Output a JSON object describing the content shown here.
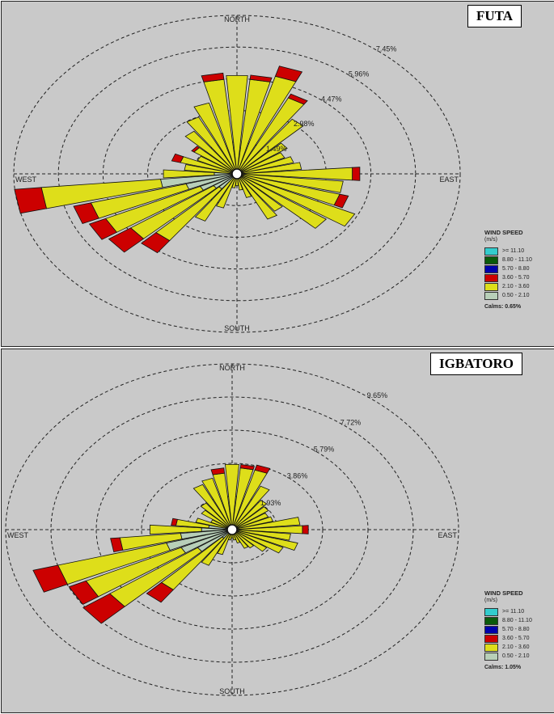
{
  "chart_data": [
    {
      "type": "wind-rose",
      "station": "FUTA",
      "compass": {
        "north": "NORTH",
        "south": "SOUTH",
        "east": "EAST",
        "west": "WEST"
      },
      "ring_labels": [
        "1.49%",
        "2.98%",
        "4.47%",
        "5.96%",
        "7.45%"
      ],
      "ring_values": [
        1.49,
        2.98,
        4.47,
        5.96,
        7.45
      ],
      "legend": {
        "title": "WIND SPEED",
        "unit": "(m/s)",
        "classes": [
          {
            "label": ">= 11.10",
            "color": "#33cccc"
          },
          {
            "label": "8.80 - 11.10",
            "color": "#0a5a0a"
          },
          {
            "label": "5.70 - 8.80",
            "color": "#0000aa"
          },
          {
            "label": "3.60 - 5.70",
            "color": "#cc0000"
          },
          {
            "label": "2.10 - 3.60",
            "color": "#dede1a"
          },
          {
            "label": "0.50 - 2.10",
            "color": "#b8cfb8"
          }
        ],
        "calms": "Calms: 0.65%"
      },
      "sectors": [
        {
          "dir": 0,
          "bands": [
            0.0,
            4.47,
            0.0
          ]
        },
        {
          "dir": 10,
          "bands": [
            0.0,
            4.3,
            0.2
          ]
        },
        {
          "dir": 20,
          "bands": [
            0.0,
            4.6,
            0.5
          ]
        },
        {
          "dir": 30,
          "bands": [
            0.0,
            3.8,
            0.2
          ]
        },
        {
          "dir": 40,
          "bands": [
            0.0,
            3.0,
            0.0
          ]
        },
        {
          "dir": 50,
          "bands": [
            0.0,
            1.9,
            0.0
          ]
        },
        {
          "dir": 60,
          "bands": [
            0.0,
            1.6,
            0.0
          ]
        },
        {
          "dir": 70,
          "bands": [
            0.0,
            1.8,
            0.0
          ]
        },
        {
          "dir": 80,
          "bands": [
            0.0,
            2.0,
            0.0
          ]
        },
        {
          "dir": 90,
          "bands": [
            0.0,
            3.7,
            0.25
          ]
        },
        {
          "dir": 100,
          "bands": [
            0.0,
            3.4,
            0.0
          ]
        },
        {
          "dir": 110,
          "bands": [
            0.0,
            3.4,
            0.3
          ]
        },
        {
          "dir": 120,
          "bands": [
            0.0,
            4.2,
            0.0
          ]
        },
        {
          "dir": 130,
          "bands": [
            0.0,
            3.5,
            0.0
          ]
        },
        {
          "dir": 140,
          "bands": [
            0.0,
            2.0,
            0.0
          ]
        },
        {
          "dir": 150,
          "bands": [
            0.0,
            2.2,
            0.0
          ]
        },
        {
          "dir": 160,
          "bands": [
            0.0,
            1.0,
            0.0
          ]
        },
        {
          "dir": 170,
          "bands": [
            0.0,
            0.6,
            0.0
          ]
        },
        {
          "dir": 180,
          "bands": [
            0.0,
            0.4,
            0.0
          ]
        },
        {
          "dir": 190,
          "bands": [
            0.0,
            0.5,
            0.0
          ]
        },
        {
          "dir": 200,
          "bands": [
            0.0,
            1.5,
            0.0
          ]
        },
        {
          "dir": 210,
          "bands": [
            0.0,
            2.3,
            0.0
          ]
        },
        {
          "dir": 220,
          "bands": [
            0.7,
            3.0,
            0.7
          ]
        },
        {
          "dir": 230,
          "bands": [
            0.8,
            3.4,
            0.9
          ]
        },
        {
          "dir": 240,
          "bands": [
            1.2,
            3.5,
            0.6
          ]
        },
        {
          "dir": 250,
          "bands": [
            1.6,
            3.3,
            0.6
          ]
        },
        {
          "dir": 260,
          "bands": [
            2.4,
            4.0,
            0.9
          ]
        },
        {
          "dir": 270,
          "bands": [
            0.6,
            1.7,
            0.0
          ]
        },
        {
          "dir": 280,
          "bands": [
            0.0,
            1.6,
            0.0
          ]
        },
        {
          "dir": 290,
          "bands": [
            0.0,
            1.8,
            0.3
          ]
        },
        {
          "dir": 300,
          "bands": [
            0.0,
            1.3,
            0.0
          ]
        },
        {
          "dir": 310,
          "bands": [
            0.0,
            1.6,
            0.1
          ]
        },
        {
          "dir": 320,
          "bands": [
            0.0,
            2.3,
            0.0
          ]
        },
        {
          "dir": 330,
          "bands": [
            0.0,
            2.8,
            0.0
          ]
        },
        {
          "dir": 340,
          "bands": [
            0.0,
            3.3,
            0.0
          ]
        },
        {
          "dir": 350,
          "bands": [
            0.0,
            4.3,
            0.3
          ]
        }
      ]
    },
    {
      "type": "wind-rose",
      "station": "IGBATORO",
      "compass": {
        "north": "NORTH",
        "south": "SOUTH",
        "east": "EAST",
        "west": "WEST"
      },
      "ring_labels": [
        "1.93%",
        "3.86%",
        "5.79%",
        "7.72%",
        "9.65%"
      ],
      "ring_values": [
        1.93,
        3.86,
        5.79,
        7.72,
        9.65
      ],
      "legend": {
        "title": "WIND SPEED",
        "unit": "(m/s)",
        "classes": [
          {
            "label": ">= 11.10",
            "color": "#33cccc"
          },
          {
            "label": "8.80 - 11.10",
            "color": "#0a5a0a"
          },
          {
            "label": "5.70 - 8.80",
            "color": "#0000aa"
          },
          {
            "label": "3.60 - 5.70",
            "color": "#cc0000"
          },
          {
            "label": "2.10 - 3.60",
            "color": "#dede1a"
          },
          {
            "label": "0.50 - 2.10",
            "color": "#b8cfb8"
          }
        ],
        "calms": "Calms: 1.05%"
      },
      "sectors": [
        {
          "dir": 0,
          "bands": [
            0.0,
            3.6,
            0.0
          ]
        },
        {
          "dir": 10,
          "bands": [
            0.0,
            3.4,
            0.2
          ]
        },
        {
          "dir": 20,
          "bands": [
            0.0,
            3.4,
            0.3
          ]
        },
        {
          "dir": 30,
          "bands": [
            0.0,
            2.6,
            0.0
          ]
        },
        {
          "dir": 40,
          "bands": [
            0.0,
            1.9,
            0.0
          ]
        },
        {
          "dir": 50,
          "bands": [
            0.0,
            1.7,
            0.0
          ]
        },
        {
          "dir": 60,
          "bands": [
            0.0,
            1.5,
            0.0
          ]
        },
        {
          "dir": 70,
          "bands": [
            0.0,
            1.6,
            0.0
          ]
        },
        {
          "dir": 80,
          "bands": [
            0.0,
            2.7,
            0.0
          ]
        },
        {
          "dir": 90,
          "bands": [
            0.0,
            2.8,
            0.25
          ]
        },
        {
          "dir": 100,
          "bands": [
            0.0,
            2.3,
            0.0
          ]
        },
        {
          "dir": 110,
          "bands": [
            0.0,
            2.7,
            0.0
          ]
        },
        {
          "dir": 120,
          "bands": [
            0.0,
            2.2,
            0.0
          ]
        },
        {
          "dir": 130,
          "bands": [
            0.0,
            1.6,
            0.0
          ]
        },
        {
          "dir": 140,
          "bands": [
            0.0,
            1.1,
            0.0
          ]
        },
        {
          "dir": 150,
          "bands": [
            0.0,
            1.0,
            0.0
          ]
        },
        {
          "dir": 160,
          "bands": [
            0.0,
            0.6,
            0.0
          ]
        },
        {
          "dir": 170,
          "bands": [
            0.0,
            0.4,
            0.0
          ]
        },
        {
          "dir": 180,
          "bands": [
            0.0,
            0.3,
            0.0
          ]
        },
        {
          "dir": 190,
          "bands": [
            0.0,
            0.4,
            0.0
          ]
        },
        {
          "dir": 200,
          "bands": [
            0.0,
            1.3,
            0.0
          ]
        },
        {
          "dir": 210,
          "bands": [
            0.0,
            2.1,
            0.0
          ]
        },
        {
          "dir": 220,
          "bands": [
            0.4,
            3.7,
            0.9
          ]
        },
        {
          "dir": 230,
          "bands": [
            1.6,
            4.6,
            1.4
          ]
        },
        {
          "dir": 240,
          "bands": [
            2.2,
            4.5,
            0.8
          ]
        },
        {
          "dir": 250,
          "bands": [
            2.7,
            4.8,
            1.1
          ]
        },
        {
          "dir": 260,
          "bands": [
            2.0,
            2.6,
            0.4
          ]
        },
        {
          "dir": 270,
          "bands": [
            1.1,
            2.2,
            0.0
          ]
        },
        {
          "dir": 280,
          "bands": [
            0.8,
            1.4,
            0.2
          ]
        },
        {
          "dir": 290,
          "bands": [
            0.0,
            1.4,
            0.0
          ]
        },
        {
          "dir": 300,
          "bands": [
            0.0,
            0.8,
            0.0
          ]
        },
        {
          "dir": 310,
          "bands": [
            0.0,
            1.4,
            0.0
          ]
        },
        {
          "dir": 320,
          "bands": [
            0.0,
            1.7,
            0.0
          ]
        },
        {
          "dir": 330,
          "bands": [
            0.0,
            2.7,
            0.0
          ]
        },
        {
          "dir": 340,
          "bands": [
            0.0,
            2.9,
            0.0
          ]
        },
        {
          "dir": 350,
          "bands": [
            0.0,
            3.1,
            0.3
          ]
        }
      ]
    }
  ]
}
